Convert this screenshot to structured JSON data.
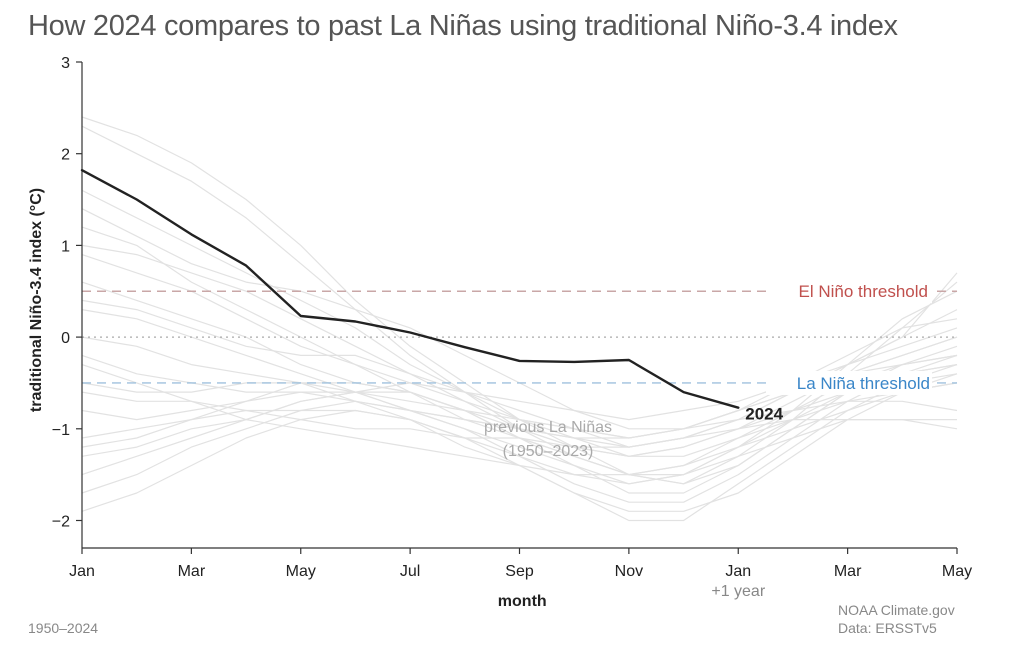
{
  "title": "How 2024 compares to past La Niñas using traditional Niño-3.4 index",
  "footer": {
    "period": "1950–2024",
    "source_line1": "NOAA Climate.gov",
    "source_line2": "Data: ERSSTv5"
  },
  "colors": {
    "el_nino": "#c0504d",
    "la_nina": "#3a86c8",
    "highlight": "#222222",
    "history": "#e2e2e2"
  },
  "chart_data": {
    "type": "line",
    "title": "How 2024 compares to past La Niñas using traditional Niño-3.4 index",
    "xlabel": "month",
    "ylabel": "traditional Niño-3.4 index (°C)",
    "ylim": [
      -2.3,
      3
    ],
    "y_ticks": [
      "3",
      "2",
      "1",
      "0",
      "−1",
      "−2"
    ],
    "y_tick_values": [
      3,
      2,
      1,
      0,
      -1,
      -2
    ],
    "x_ticks": [
      "Jan",
      "Mar",
      "May",
      "Jul",
      "Sep",
      "Nov",
      "Jan",
      "Mar",
      "May"
    ],
    "x_tick_values": [
      0,
      2,
      4,
      6,
      8,
      10,
      12,
      14,
      16
    ],
    "x_sublabel": "+1 year",
    "grid": false,
    "thresholds": [
      {
        "label": "El Niño threshold",
        "value": 0.5
      },
      {
        "label": "La Niña threshold",
        "value": -0.5
      }
    ],
    "highlight_series": {
      "name": "2024",
      "x": [
        0,
        1,
        2,
        3,
        4,
        5,
        6,
        7,
        8,
        9,
        10,
        11,
        12
      ],
      "values": [
        1.82,
        1.5,
        1.12,
        0.78,
        0.23,
        0.17,
        0.05,
        -0.11,
        -0.26,
        -0.27,
        -0.25,
        -0.6,
        -0.77
      ]
    },
    "background_label": [
      "previous La Niñas",
      "(1950–2023)"
    ],
    "background_series": [
      [
        2.4,
        2.2,
        1.9,
        1.5,
        1.0,
        0.4,
        -0.1,
        -0.5,
        -0.9,
        -1.2,
        -1.5,
        -1.6,
        -1.3,
        -0.9,
        -0.4,
        0.1,
        0.6
      ],
      [
        2.3,
        2.0,
        1.7,
        1.3,
        0.8,
        0.3,
        -0.2,
        -0.6,
        -1.0,
        -1.3,
        -1.5,
        -1.5,
        -1.2,
        -0.8,
        -0.3,
        0.2,
        0.5
      ],
      [
        1.6,
        1.3,
        1.0,
        0.7,
        0.4,
        0.1,
        -0.3,
        -0.6,
        -0.9,
        -1.1,
        -1.3,
        -1.2,
        -1.0,
        -0.7,
        -0.4,
        -0.2,
        0.0
      ],
      [
        1.2,
        1.0,
        0.6,
        0.3,
        0.0,
        -0.3,
        -0.6,
        -0.8,
        -1.1,
        -1.3,
        -1.5,
        -1.6,
        -1.4,
        -1.0,
        -0.6,
        -0.3,
        -0.1
      ],
      [
        0.9,
        0.7,
        0.5,
        0.2,
        -0.1,
        -0.3,
        -0.5,
        -0.7,
        -0.9,
        -1.0,
        -1.2,
        -1.1,
        -0.9,
        -0.6,
        -0.3,
        0.0,
        0.3
      ],
      [
        0.6,
        0.4,
        0.2,
        0.0,
        -0.3,
        -0.5,
        -0.6,
        -0.9,
        -1.1,
        -1.3,
        -1.5,
        -1.4,
        -1.1,
        -0.8,
        -0.5,
        -0.3,
        -0.2
      ],
      [
        0.3,
        0.2,
        0.0,
        -0.2,
        -0.4,
        -0.6,
        -0.8,
        -1.0,
        -1.2,
        -1.4,
        -1.6,
        -1.5,
        -1.2,
        -0.9,
        -0.6,
        -0.4,
        -0.3
      ],
      [
        0.0,
        -0.1,
        -0.3,
        -0.4,
        -0.5,
        -0.7,
        -0.9,
        -1.2,
        -1.4,
        -1.7,
        -1.9,
        -1.9,
        -1.7,
        -1.3,
        -0.9,
        -0.6,
        -0.4
      ],
      [
        -0.2,
        -0.4,
        -0.5,
        -0.6,
        -0.6,
        -0.7,
        -0.8,
        -0.9,
        -1.0,
        -1.1,
        -1.1,
        -1.0,
        -0.8,
        -0.6,
        -0.4,
        -0.2,
        0.0
      ],
      [
        -0.5,
        -0.6,
        -0.6,
        -0.5,
        -0.5,
        -0.6,
        -0.8,
        -0.9,
        -1.0,
        -1.2,
        -1.3,
        -1.2,
        -1.0,
        -0.8,
        -0.6,
        -0.5,
        -0.4
      ],
      [
        -0.8,
        -0.9,
        -0.8,
        -0.7,
        -0.6,
        -0.6,
        -0.7,
        -0.8,
        -0.9,
        -1.0,
        -1.1,
        -1.0,
        -0.9,
        -0.8,
        -0.7,
        -0.7,
        -0.8
      ],
      [
        -1.1,
        -1.0,
        -0.9,
        -0.8,
        -0.8,
        -0.8,
        -0.9,
        -1.1,
        -1.3,
        -1.5,
        -1.6,
        -1.5,
        -1.3,
        -1.1,
        -0.9,
        -0.9,
        -1.0
      ],
      [
        -1.3,
        -1.2,
        -1.0,
        -0.9,
        -0.7,
        -0.6,
        -0.5,
        -0.6,
        -0.8,
        -1.0,
        -1.1,
        -1.0,
        -0.8,
        -0.5,
        -0.2,
        0.1,
        0.2
      ],
      [
        -1.5,
        -1.3,
        -1.1,
        -0.9,
        -0.7,
        -0.6,
        -0.6,
        -0.8,
        -1.1,
        -1.4,
        -1.7,
        -1.7,
        -1.4,
        -1.0,
        -0.6,
        -0.4,
        -0.3
      ],
      [
        -1.7,
        -1.5,
        -1.2,
        -1.0,
        -0.8,
        -0.7,
        -0.8,
        -1.0,
        -1.3,
        -1.6,
        -1.8,
        -1.8,
        -1.5,
        -1.1,
        -0.7,
        -0.4,
        -0.2
      ],
      [
        -1.9,
        -1.7,
        -1.4,
        -1.1,
        -0.9,
        -0.8,
        -0.9,
        -1.1,
        -1.4,
        -1.7,
        -2.0,
        -2.0,
        -1.6,
        -1.2,
        -0.8,
        -0.5,
        -0.3
      ],
      [
        -1.2,
        -1.1,
        -0.9,
        -0.7,
        -0.5,
        -0.5,
        -0.6,
        -0.8,
        -1.0,
        -1.1,
        -1.2,
        -1.1,
        -0.9,
        -0.6,
        -0.3,
        0.0,
        0.7
      ],
      [
        1.4,
        1.1,
        0.8,
        0.6,
        0.5,
        0.3,
        0.1,
        -0.2,
        -0.5,
        -0.8,
        -1.0,
        -1.0,
        -0.8,
        -0.6,
        -0.4,
        -0.3,
        -0.2
      ],
      [
        0.4,
        0.3,
        0.1,
        -0.1,
        -0.2,
        -0.2,
        -0.4,
        -0.7,
        -1.0,
        -1.2,
        -1.3,
        -1.3,
        -1.1,
        -0.9,
        -0.7,
        -0.6,
        -0.5
      ],
      [
        -0.3,
        -0.5,
        -0.7,
        -0.9,
        -1.0,
        -1.1,
        -1.2,
        -1.3,
        -1.4,
        -1.5,
        -1.5,
        -1.4,
        -1.2,
        -1.0,
        -0.8,
        -0.6,
        -0.5
      ],
      [
        -0.6,
        -0.7,
        -0.7,
        -0.8,
        -0.9,
        -1.0,
        -1.0,
        -1.1,
        -1.1,
        -1.2,
        -1.2,
        -1.1,
        -1.0,
        -0.9,
        -0.9,
        -0.9,
        -0.9
      ],
      [
        1.0,
        0.9,
        0.7,
        0.5,
        0.2,
        -0.1,
        -0.4,
        -0.6,
        -0.7,
        -0.8,
        -0.9,
        -0.8,
        -0.7,
        -0.5,
        -0.3,
        -0.1,
        0.1
      ]
    ]
  }
}
